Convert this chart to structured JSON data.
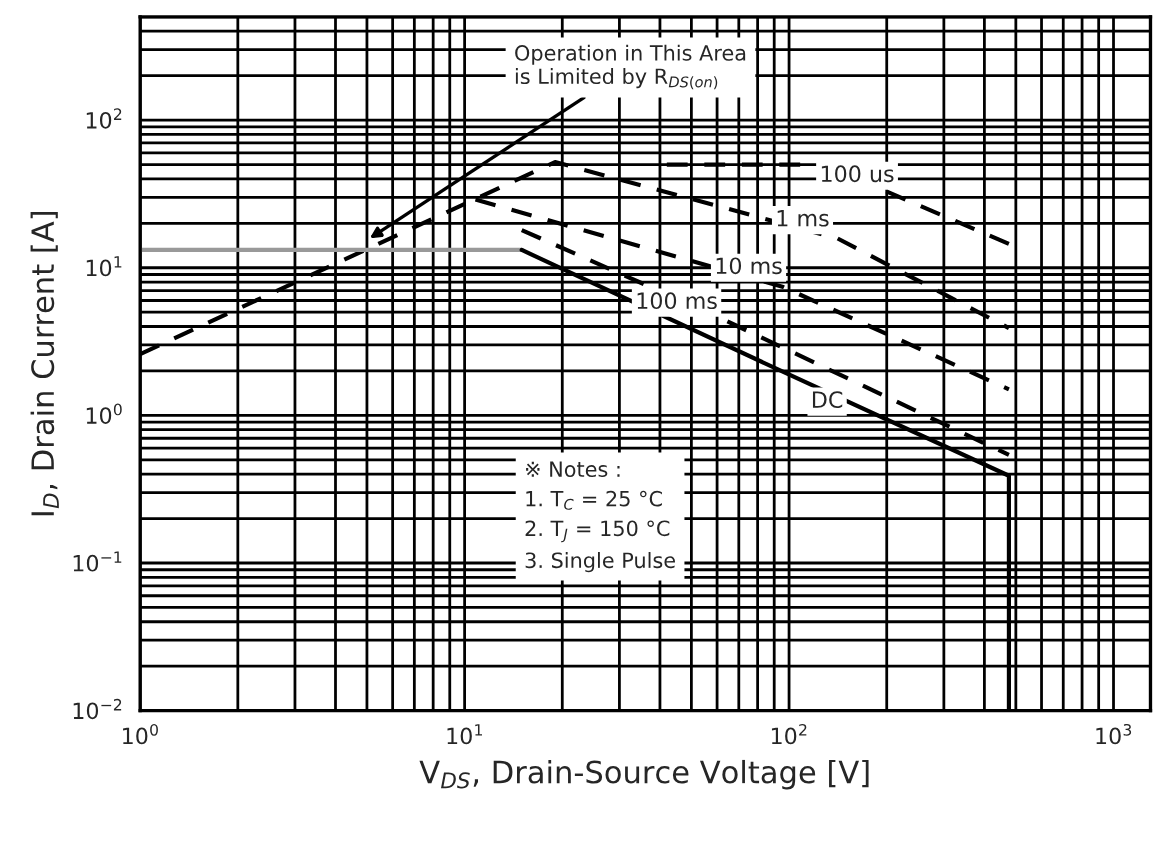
{
  "chart_data": {
    "type": "line",
    "xlabel": "V$_{DS}$, Drain-Source Voltage [V]",
    "ylabel": "I$_{D}$, Drain Current [A]",
    "log": "xy",
    "grid": true,
    "marker": "none",
    "xlim": [
      1,
      1300
    ],
    "ylim": [
      0.01,
      500
    ],
    "xticks": [
      {
        "value": 1,
        "label": "10$^{0}$"
      },
      {
        "value": 10,
        "label": "10$^{1}$"
      },
      {
        "value": 100,
        "label": "10$^{2}$"
      },
      {
        "value": 1000,
        "label": "10$^{3}$"
      }
    ],
    "yticks": [
      {
        "value": 0.01,
        "label": "10$^{−2}$"
      },
      {
        "value": 0.1,
        "label": "10$^{−1}$"
      },
      {
        "value": 1,
        "label": "10$^{0}$"
      },
      {
        "value": 10,
        "label": "10$^{1}$"
      },
      {
        "value": 100,
        "label": "10$^{2}$"
      }
    ],
    "series": [
      {
        "color": "#000000",
        "line_style": "dashed",
        "x": [
          1,
          19,
          141,
          476
        ],
        "values": [
          2.6,
          52,
          15.8,
          3.9
        ]
      },
      {
        "color": "#000000",
        "line_style": "dashed",
        "x": [
          42,
          128,
          476
        ],
        "values": [
          50,
          50,
          14.5
        ]
      },
      {
        "color": "#000000",
        "line_style": "dashed",
        "x": [
          10.8,
          96,
          476
        ],
        "values": [
          29,
          7.4,
          1.5
        ]
      },
      {
        "color": "#000000",
        "line_style": "dashed",
        "x": [
          15,
          61,
          476
        ],
        "values": [
          18,
          4.6,
          0.54
        ]
      },
      {
        "color": "#999999",
        "line_style": "solid",
        "x": [
          1,
          15
        ],
        "values": [
          13.2,
          13.2
        ]
      },
      {
        "color": "#000000",
        "line_style": "solid",
        "x": [
          15,
          96,
          476,
          476
        ],
        "values": [
          13.2,
          1.97,
          0.39,
          0.01
        ]
      }
    ],
    "annotations": [
      {
        "text": "Operation in This Area\nis Limited by R$_{DS(on)}$",
        "x": 5.1,
        "y": 15.8
      },
      {
        "text": "100 us",
        "x": 162,
        "y": 42
      },
      {
        "text": "1 ms",
        "x": 110,
        "y": 21
      },
      {
        "text": "10 ms",
        "x": 75,
        "y": 10
      },
      {
        "text": "100 ms",
        "x": 45,
        "y": 5.8
      },
      {
        "text": "DC",
        "x": 131,
        "y": 1.24
      },
      "※ Notes :\n1. T$_{C}$ = 25 °C\n2. T$_{J}$ = 150 °C\n3. Single Pulse"
    ]
  }
}
